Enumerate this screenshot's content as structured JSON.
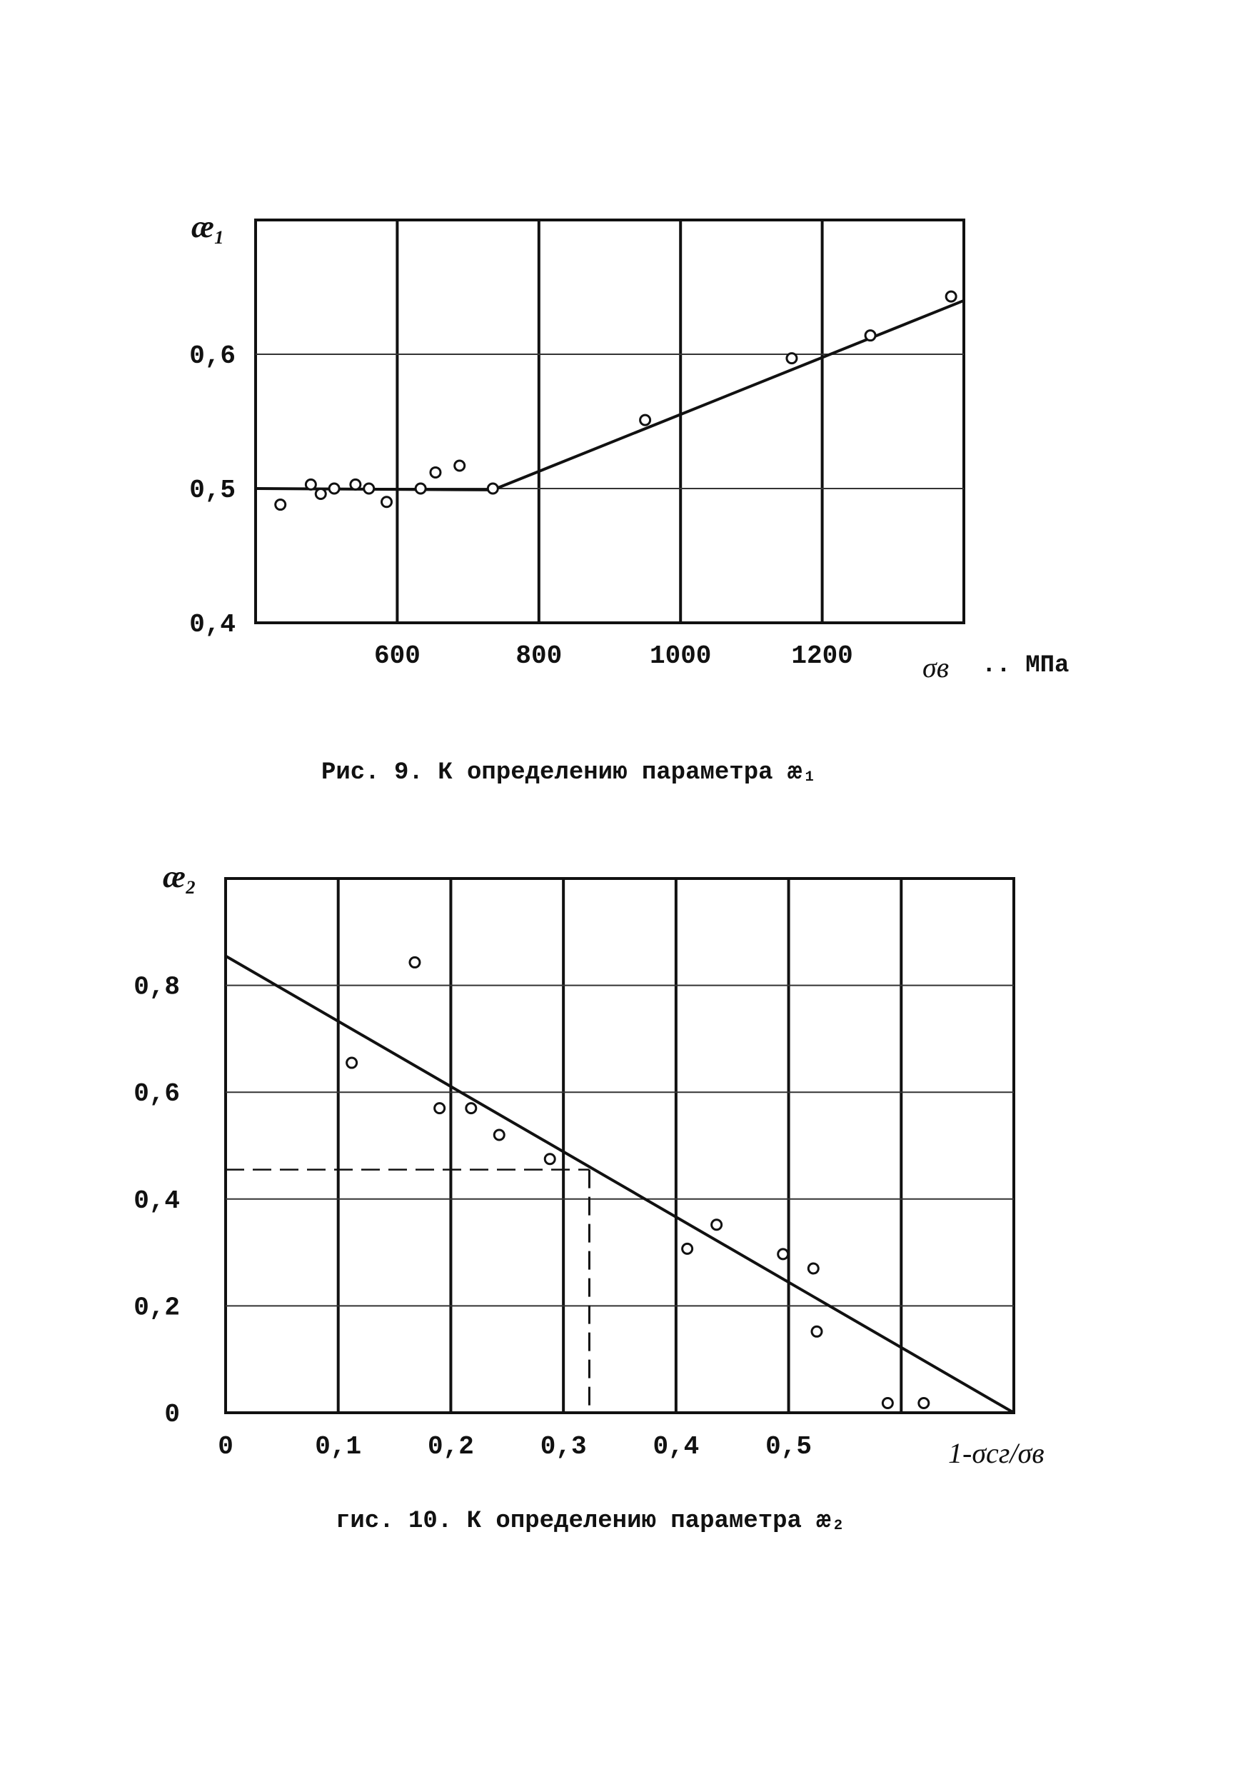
{
  "chart_data": [
    {
      "type": "scatter",
      "ylabel": "æ₁",
      "xlabel": "σв",
      "xunit": ".. МПа",
      "caption": "Рис. 9. К определению параметра æ₁",
      "xlim": [
        400,
        1400
      ],
      "ylim": [
        0.4,
        0.7
      ],
      "xticks": [
        600,
        800,
        1000,
        1200
      ],
      "xtick_labels": [
        "600",
        "800",
        "1000",
        "1200"
      ],
      "yticks": [
        0.4,
        0.5,
        0.6
      ],
      "ytick_labels": [
        "0,4",
        "0,5",
        "0,6"
      ],
      "points": [
        {
          "x": 435,
          "y": 0.488
        },
        {
          "x": 478,
          "y": 0.503
        },
        {
          "x": 492,
          "y": 0.496
        },
        {
          "x": 511,
          "y": 0.5
        },
        {
          "x": 541,
          "y": 0.503
        },
        {
          "x": 560,
          "y": 0.5
        },
        {
          "x": 585,
          "y": 0.49
        },
        {
          "x": 633,
          "y": 0.5
        },
        {
          "x": 654,
          "y": 0.512
        },
        {
          "x": 688,
          "y": 0.517
        },
        {
          "x": 735,
          "y": 0.5
        },
        {
          "x": 950,
          "y": 0.551
        },
        {
          "x": 1157,
          "y": 0.597
        },
        {
          "x": 1268,
          "y": 0.614
        },
        {
          "x": 1382,
          "y": 0.643
        }
      ],
      "fit_line": [
        {
          "x": 400,
          "y": 0.5
        },
        {
          "x": 735,
          "y": 0.499
        },
        {
          "x": 1400,
          "y": 0.64
        }
      ],
      "grid": true
    },
    {
      "type": "scatter",
      "ylabel": "æ₂",
      "xlabel": "1-σсг/σв",
      "caption": "гис. 10. К определению параметра æ₂",
      "xlim": [
        0,
        0.7
      ],
      "ylim": [
        0,
        1.0
      ],
      "xticks": [
        0,
        0.1,
        0.2,
        0.3,
        0.4,
        0.5
      ],
      "xtick_labels": [
        "0",
        "0,1",
        "0,2",
        "0,3",
        "0,4",
        "0,5"
      ],
      "yticks": [
        0,
        0.2,
        0.4,
        0.6,
        0.8
      ],
      "ytick_labels": [
        "0",
        "0,2",
        "0,4",
        "0,6",
        "0,8"
      ],
      "points": [
        {
          "x": 0.112,
          "y": 0.655
        },
        {
          "x": 0.168,
          "y": 0.843
        },
        {
          "x": 0.19,
          "y": 0.57
        },
        {
          "x": 0.218,
          "y": 0.57
        },
        {
          "x": 0.243,
          "y": 0.52
        },
        {
          "x": 0.288,
          "y": 0.475
        },
        {
          "x": 0.41,
          "y": 0.307
        },
        {
          "x": 0.436,
          "y": 0.352
        },
        {
          "x": 0.495,
          "y": 0.297
        },
        {
          "x": 0.522,
          "y": 0.27
        },
        {
          "x": 0.525,
          "y": 0.152
        },
        {
          "x": 0.588,
          "y": 0.018
        },
        {
          "x": 0.62,
          "y": 0.018
        }
      ],
      "fit_line": [
        {
          "x": 0,
          "y": 0.855
        },
        {
          "x": 0.7,
          "y": 0.0
        }
      ],
      "guide": {
        "x": 0.323,
        "y": 0.455
      },
      "grid": true
    }
  ]
}
